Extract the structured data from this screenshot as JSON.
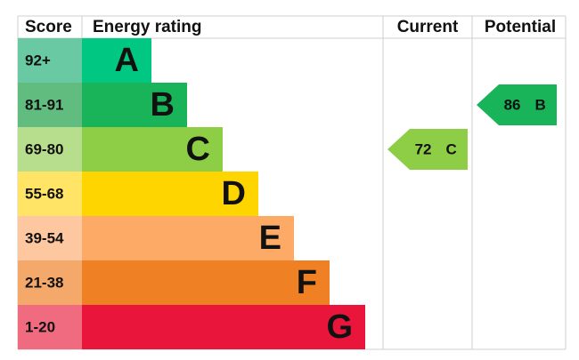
{
  "header": {
    "score": "Score",
    "rating": "Energy rating",
    "current": "Current",
    "potential": "Potential"
  },
  "bands": [
    {
      "range": "92+",
      "letter": "A",
      "color": "#00c781",
      "score_color": "#69c9a2"
    },
    {
      "range": "81-91",
      "letter": "B",
      "color": "#19b459",
      "score_color": "#60bd7f"
    },
    {
      "range": "69-80",
      "letter": "C",
      "color": "#8dce46",
      "score_color": "#b7de8d"
    },
    {
      "range": "55-68",
      "letter": "D",
      "color": "#ffd500",
      "score_color": "#ffe466"
    },
    {
      "range": "39-54",
      "letter": "E",
      "color": "#fcaa65",
      "score_color": "#fdc7a0"
    },
    {
      "range": "21-38",
      "letter": "F",
      "color": "#ef8023",
      "score_color": "#f4a96b"
    },
    {
      "range": "1-20",
      "letter": "G",
      "color": "#e9153b",
      "score_color": "#f06b80"
    }
  ],
  "current": {
    "score": 72,
    "band": "C"
  },
  "potential": {
    "score": 86,
    "band": "B"
  }
}
